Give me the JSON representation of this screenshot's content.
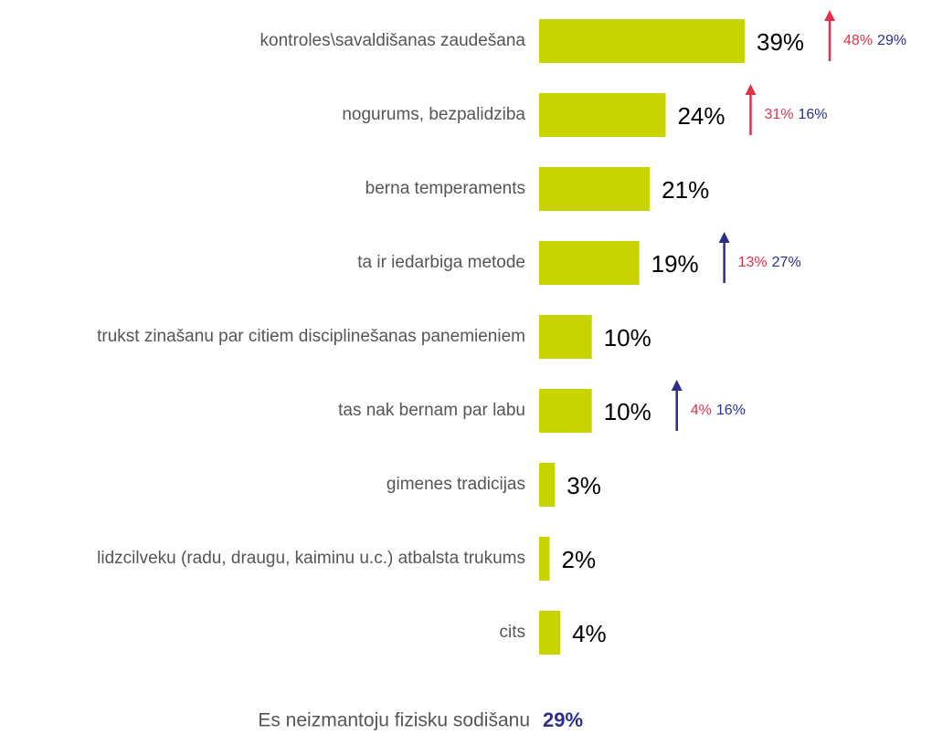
{
  "chart_data": {
    "type": "bar",
    "orientation": "horizontal",
    "categories": [
      "kontroles\\savaldišanas zaudešana",
      "nogurums, bezpalidziba",
      "berna temperaments",
      "ta ir iedarbiga metode",
      "trukst zinašanu par citiem disciplinešanas panemieniem",
      "tas nak bernam par labu",
      "gimenes tradicijas",
      "lidzcilveku (radu, draugu, kaiminu u.c.) atbalsta trukums",
      "cits"
    ],
    "values": [
      39,
      24,
      21,
      19,
      10,
      10,
      3,
      2,
      4
    ],
    "value_labels": [
      "39%",
      "24%",
      "21%",
      "19%",
      "10%",
      "10%",
      "3%",
      "2%",
      "4%"
    ],
    "color": "#c8d400",
    "arrow_colors": [
      "#e0304a",
      "#e0304a",
      null,
      "#2b2f8a",
      null,
      "#2b2f8a",
      null,
      null,
      null
    ],
    "comparisons": [
      {
        "color": "#e0304a",
        "values": [
          48,
          31,
          null,
          13,
          null,
          4,
          null,
          null,
          null
        ],
        "value_labels": [
          "48%",
          "31%",
          null,
          "13%",
          null,
          "4%",
          null,
          null,
          null
        ]
      },
      {
        "color": "#2b2f8a",
        "values": [
          29,
          16,
          null,
          27,
          null,
          16,
          null,
          null,
          null
        ],
        "value_labels": [
          "29%",
          "16%",
          null,
          "27%",
          null,
          "16%",
          null,
          null,
          null
        ]
      }
    ],
    "footer": {
      "label": "Es neizmantoju fizisku sodišanu",
      "value": 29,
      "value_label": "29%",
      "color": "#2b2f8a"
    }
  }
}
